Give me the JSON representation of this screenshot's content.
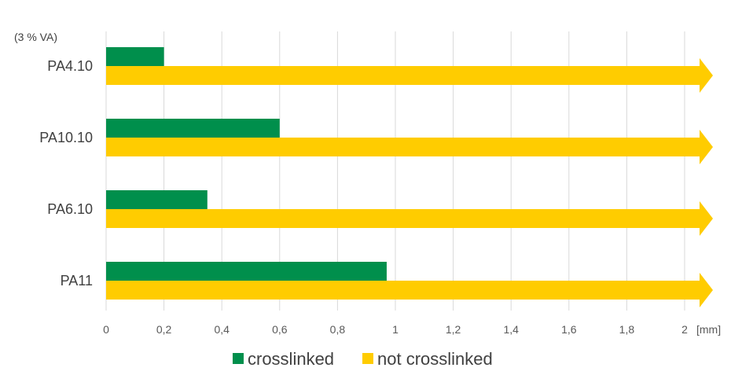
{
  "chart_data": {
    "type": "bar",
    "orientation": "horizontal",
    "annotation": "(3 % VA)",
    "x_unit": "[mm]",
    "xlim": [
      0,
      2.1
    ],
    "x_ticks": [
      0,
      0.2,
      0.4,
      0.6,
      0.8,
      1,
      1.2,
      1.4,
      1.6,
      1.8,
      2
    ],
    "x_tick_labels": [
      "0",
      "0,2",
      "0,4",
      "0,6",
      "0,8",
      "1",
      "1,2",
      "1,4",
      "1,6",
      "1,8",
      "2"
    ],
    "grid": true,
    "legend_position": "bottom",
    "categories": [
      "PA4.10",
      "PA10.10",
      "PA6.10",
      "PA11"
    ],
    "series": [
      {
        "name": "crosslinked",
        "color": "#008f4c",
        "values": [
          0.2,
          0.6,
          0.35,
          0.97
        ]
      },
      {
        "name": "not crosslinked",
        "color": "#ffcc00",
        "values": [
          2.1,
          2.1,
          2.1,
          2.1
        ],
        "note": "arrow beyond axis"
      }
    ]
  }
}
